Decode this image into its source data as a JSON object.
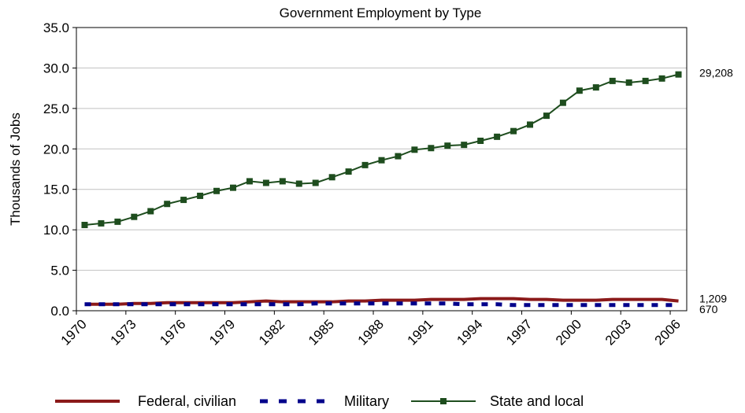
{
  "chart_data": {
    "type": "line",
    "title": "Government Employment by Type",
    "ylabel": "Thousands of Jobs",
    "xlabel": "",
    "ylim": [
      0,
      35
    ],
    "yticks": [
      "0.0",
      "5.0",
      "10.0",
      "15.0",
      "20.0",
      "25.0",
      "30.0",
      "35.0"
    ],
    "x": [
      1970,
      1971,
      1972,
      1973,
      1974,
      1975,
      1976,
      1977,
      1978,
      1979,
      1980,
      1981,
      1982,
      1983,
      1984,
      1985,
      1986,
      1987,
      1988,
      1989,
      1990,
      1991,
      1992,
      1993,
      1994,
      1995,
      1996,
      1997,
      1998,
      1999,
      2000,
      2001,
      2002,
      2003,
      2004,
      2005,
      2006
    ],
    "xticks": [
      "1970",
      "1973",
      "1976",
      "1979",
      "1982",
      "1985",
      "1988",
      "1991",
      "1994",
      "1997",
      "2000",
      "2003",
      "2006"
    ],
    "grid": true,
    "legend_position": "bottom",
    "series": [
      {
        "name": "Federal, civilian",
        "color": "#8B1A1A",
        "style": "solid-thick",
        "values": [
          0.8,
          0.8,
          0.8,
          0.9,
          0.9,
          1.0,
          1.0,
          1.0,
          1.0,
          1.0,
          1.1,
          1.2,
          1.1,
          1.1,
          1.1,
          1.1,
          1.2,
          1.2,
          1.3,
          1.3,
          1.3,
          1.4,
          1.4,
          1.4,
          1.5,
          1.5,
          1.5,
          1.4,
          1.4,
          1.3,
          1.3,
          1.3,
          1.4,
          1.4,
          1.4,
          1.4,
          1.2
        ],
        "end_label": "1,209"
      },
      {
        "name": "Military",
        "color": "#00008B",
        "style": "dashed",
        "values": [
          0.8,
          0.8,
          0.8,
          0.8,
          0.8,
          0.8,
          0.8,
          0.8,
          0.8,
          0.8,
          0.8,
          0.8,
          0.8,
          0.8,
          0.9,
          0.9,
          0.9,
          0.9,
          0.9,
          0.9,
          0.9,
          0.9,
          0.9,
          0.8,
          0.8,
          0.8,
          0.7,
          0.7,
          0.7,
          0.7,
          0.7,
          0.7,
          0.7,
          0.7,
          0.7,
          0.7,
          0.7
        ],
        "end_label": "670"
      },
      {
        "name": "State and local",
        "color": "#1E4D1E",
        "style": "solid-square-markers",
        "values": [
          10.6,
          10.8,
          11.0,
          11.6,
          12.3,
          13.2,
          13.7,
          14.2,
          14.8,
          15.2,
          16.0,
          15.8,
          16.0,
          15.7,
          15.8,
          16.5,
          17.2,
          18.0,
          18.6,
          19.1,
          19.9,
          20.1,
          20.4,
          20.5,
          21.0,
          21.5,
          22.2,
          23.0,
          24.1,
          25.7,
          27.2,
          27.6,
          28.4,
          28.2,
          28.4,
          28.7,
          29.2
        ],
        "end_label": "29,208"
      }
    ]
  }
}
